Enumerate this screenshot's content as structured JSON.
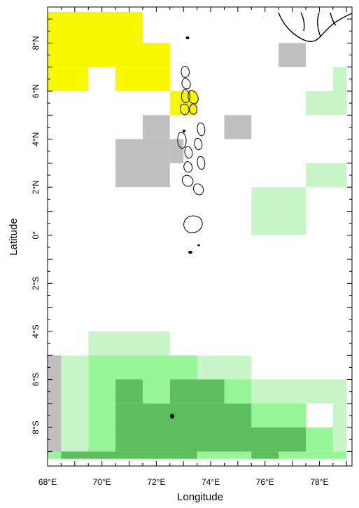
{
  "map": {
    "x_axis_title": "Longitude",
    "y_axis_title": "Latitude",
    "lon_range": [
      68,
      79.2
    ],
    "lat_range": [
      -9.6,
      9.5
    ],
    "lon_tick_labels": [
      {
        "value": 68,
        "label": "68°E"
      },
      {
        "value": 70,
        "label": "70°E"
      },
      {
        "value": 72,
        "label": "72°E"
      },
      {
        "value": 74,
        "label": "74°E"
      },
      {
        "value": 76,
        "label": "76°E"
      },
      {
        "value": 78,
        "label": "78°E"
      }
    ],
    "lat_tick_labels": [
      {
        "value": 8,
        "label": "8°N"
      },
      {
        "value": 6,
        "label": "6°N"
      },
      {
        "value": 4,
        "label": "4°N"
      },
      {
        "value": 2,
        "label": "2°N"
      },
      {
        "value": 0,
        "label": "0°"
      },
      {
        "value": -2,
        "label": "2°S"
      },
      {
        "value": -4,
        "label": "4°S"
      },
      {
        "value": -6,
        "label": "6°S"
      },
      {
        "value": -8,
        "label": "8°S"
      }
    ],
    "colors": {
      "yellow": "#f7f700",
      "gray": "#bfbfbf",
      "pale_green": "#c8f5c8",
      "light_green": "#96f596",
      "dark_green": "#5cbe5c",
      "outline": "#000000"
    },
    "shaded_cells": [
      {
        "lon": [
          68,
          71.5
        ],
        "lat": [
          8,
          9.3
        ],
        "category": "yellow"
      },
      {
        "lon": [
          68,
          72.5
        ],
        "lat": [
          7,
          8
        ],
        "category": "yellow"
      },
      {
        "lon": [
          68,
          69.5
        ],
        "lat": [
          6,
          7
        ],
        "category": "yellow"
      },
      {
        "lon": [
          70.5,
          72.5
        ],
        "lat": [
          6,
          7
        ],
        "category": "yellow"
      },
      {
        "lon": [
          72.5,
          73.5
        ],
        "lat": [
          5,
          6
        ],
        "category": "yellow"
      },
      {
        "lon": [
          71.5,
          72.5
        ],
        "lat": [
          4,
          5
        ],
        "category": "gray"
      },
      {
        "lon": [
          70.5,
          72.5
        ],
        "lat": [
          3,
          4
        ],
        "category": "gray"
      },
      {
        "lon": [
          70.5,
          72.5
        ],
        "lat": [
          2,
          3
        ],
        "category": "gray"
      },
      {
        "lon": [
          72.5,
          73
        ],
        "lat": [
          3,
          4
        ],
        "category": "gray"
      },
      {
        "lon": [
          74.5,
          75.5
        ],
        "lat": [
          4,
          5
        ],
        "category": "gray"
      },
      {
        "lon": [
          76.5,
          77.5
        ],
        "lat": [
          7,
          8
        ],
        "category": "gray"
      },
      {
        "lon": [
          78.5,
          79
        ],
        "lat": [
          6,
          7
        ],
        "category": "pale_green"
      },
      {
        "lon": [
          77.5,
          79
        ],
        "lat": [
          5,
          6
        ],
        "category": "pale_green"
      },
      {
        "lon": [
          77.5,
          79
        ],
        "lat": [
          2,
          3
        ],
        "category": "pale_green"
      },
      {
        "lon": [
          75.5,
          77.5
        ],
        "lat": [
          1,
          2
        ],
        "category": "pale_green"
      },
      {
        "lon": [
          75.5,
          77.5
        ],
        "lat": [
          0,
          1
        ],
        "category": "pale_green"
      },
      {
        "lon": [
          76.5,
          77.5
        ],
        "lat": [
          0,
          0
        ],
        "category": "pale_green"
      },
      {
        "lon": [
          69.5,
          72.5
        ],
        "lat": [
          -5,
          -4
        ],
        "category": "pale_green"
      },
      {
        "lon": [
          68.5,
          69.5
        ],
        "lat": [
          -9,
          -5
        ],
        "category": "pale_green"
      },
      {
        "lon": [
          73.5,
          75.5
        ],
        "lat": [
          -6,
          -5
        ],
        "category": "pale_green"
      },
      {
        "lon": [
          75.5,
          79
        ],
        "lat": [
          -7,
          -6
        ],
        "category": "pale_green"
      },
      {
        "lon": [
          78.5,
          79
        ],
        "lat": [
          -9,
          -7
        ],
        "category": "pale_green"
      },
      {
        "lon": [
          68,
          68.5
        ],
        "lat": [
          -9,
          -5
        ],
        "category": "gray"
      },
      {
        "lon": [
          69.5,
          73.5
        ],
        "lat": [
          -6,
          -5
        ],
        "category": "light_green"
      },
      {
        "lon": [
          69.5,
          70.5
        ],
        "lat": [
          -7,
          -6
        ],
        "category": "light_green"
      },
      {
        "lon": [
          69.5,
          70.5
        ],
        "lat": [
          -9,
          -7
        ],
        "category": "light_green"
      },
      {
        "lon": [
          71.5,
          72.5
        ],
        "lat": [
          -7,
          -6
        ],
        "category": "light_green"
      },
      {
        "lon": [
          74.5,
          75.5
        ],
        "lat": [
          -7,
          -6
        ],
        "category": "light_green"
      },
      {
        "lon": [
          75.5,
          77.5
        ],
        "lat": [
          -8,
          -7
        ],
        "category": "light_green"
      },
      {
        "lon": [
          77.5,
          78.5
        ],
        "lat": [
          -9,
          -8
        ],
        "category": "light_green"
      },
      {
        "lon": [
          68,
          79
        ],
        "lat": [
          -9.3,
          -9
        ],
        "category": "light_green"
      },
      {
        "lon": [
          70.5,
          71.5
        ],
        "lat": [
          -7,
          -6
        ],
        "category": "dark_green"
      },
      {
        "lon": [
          72.5,
          74.5
        ],
        "lat": [
          -7,
          -6
        ],
        "category": "dark_green"
      },
      {
        "lon": [
          70.5,
          75.5
        ],
        "lat": [
          -8,
          -7
        ],
        "category": "dark_green"
      },
      {
        "lon": [
          70.5,
          77.5
        ],
        "lat": [
          -9,
          -8
        ],
        "category": "dark_green"
      },
      {
        "lon": [
          68.5,
          73.5
        ],
        "lat": [
          -9.3,
          -9
        ],
        "category": "dark_green"
      },
      {
        "lon": [
          75.5,
          76.5
        ],
        "lat": [
          -9.3,
          -9
        ],
        "category": "dark_green"
      }
    ]
  }
}
